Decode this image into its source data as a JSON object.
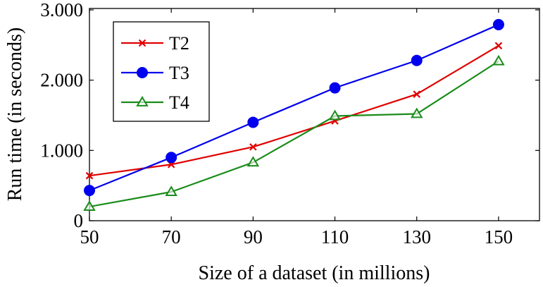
{
  "chart_data": {
    "type": "line",
    "title": "",
    "xlabel": "Size of a dataset (in millions)",
    "ylabel": "Run time (in seconds)",
    "x": [
      50,
      70,
      90,
      110,
      130,
      150
    ],
    "xticks": [
      "50",
      "70",
      "90",
      "110",
      "130",
      "150"
    ],
    "yticks": [
      {
        "value": 0,
        "label": "0"
      },
      {
        "value": 1000,
        "label": "1.000"
      },
      {
        "value": 2000,
        "label": "2.000"
      },
      {
        "value": 3000,
        "label": "3.000"
      }
    ],
    "xlim": [
      50,
      160
    ],
    "ylim": [
      0,
      3000
    ],
    "grid": false,
    "legend_position": "top-left",
    "series": [
      {
        "name": "T2",
        "color": "#e00000",
        "marker": "cross",
        "values": [
          640,
          800,
          1050,
          1420,
          1800,
          2490
        ]
      },
      {
        "name": "T3",
        "color": "#0000ee",
        "marker": "circle",
        "values": [
          430,
          900,
          1400,
          1890,
          2280,
          2790
        ]
      },
      {
        "name": "T4",
        "color": "#1a8c1a",
        "marker": "triangle",
        "values": [
          200,
          410,
          830,
          1490,
          1520,
          2270
        ]
      }
    ]
  }
}
